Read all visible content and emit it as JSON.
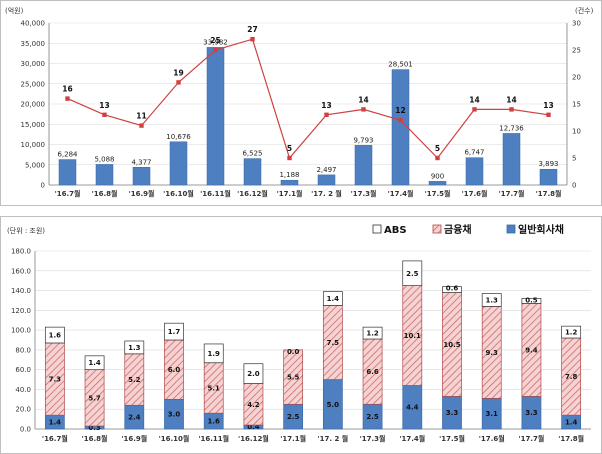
{
  "colors": {
    "blue_bar": "#4e7fc0",
    "blue_bar_dark": "#3a6aa8",
    "red_line": "#d14040",
    "pink_fill": "#f2c8c8",
    "pink_hatch": "#c85555",
    "white_bar": "#ffffff",
    "grid": "#d9d9d9",
    "axis": "#808080"
  },
  "chart_data": [
    {
      "type": "bar+line",
      "title": "",
      "ylabel_left": "(억원)",
      "ylabel_right": "(건수)",
      "categories": [
        "'16.7월",
        "'16.8월",
        "'16.9월",
        "'16.10월",
        "'16.11월",
        "'16.12월",
        "'17.1월",
        "'17. 2 월",
        "'17.3월",
        "'17.4월",
        "'17.5월",
        "'17.6월",
        "'17.7월",
        "'17.8월"
      ],
      "bar_values": [
        6284,
        5088,
        4377,
        10676,
        33982,
        6525,
        1188,
        2497,
        9793,
        28501,
        900,
        6747,
        12736,
        3893
      ],
      "bar_labels": [
        "6,284",
        "5,088",
        "4,377",
        "10,676",
        "33,982",
        "6,525",
        "1,188",
        "2,497",
        "9,793",
        "28,501",
        "900",
        "6,747",
        "12,736",
        "3,893"
      ],
      "line_values": [
        16,
        13,
        11,
        19,
        25,
        27,
        5,
        13,
        14,
        12,
        5,
        14,
        14,
        13
      ],
      "line_labels": [
        "16",
        "13",
        "11",
        "19",
        "25",
        "27",
        "5",
        "13",
        "14",
        "12",
        "5",
        "14",
        "14",
        "13"
      ],
      "ylim_left": [
        0,
        40000
      ],
      "ylim_right": [
        0,
        30
      ],
      "left_ticks": [
        "0",
        "5,000",
        "10,000",
        "15,000",
        "20,000",
        "25,000",
        "30,000",
        "35,000",
        "40,000"
      ],
      "right_ticks": [
        "0",
        "5",
        "10",
        "15",
        "20",
        "25",
        "30"
      ]
    },
    {
      "type": "stacked_bar",
      "unit_label": "(단위 : 조원)",
      "categories": [
        "'16.7월",
        "'16.8월",
        "'16.9월",
        "'16.10월",
        "'16.11월",
        "'16.12월",
        "'17.1월",
        "'17. 2 월",
        "'17.3월",
        "'17.4월",
        "'17.5월",
        "'17.6월",
        "'17.7월",
        "'17.8월"
      ],
      "series": [
        {
          "name": "일반회사채",
          "values": [
            1.4,
            0.3,
            2.4,
            3.0,
            1.6,
            0.4,
            2.5,
            5.0,
            2.5,
            4.4,
            3.3,
            3.1,
            3.3,
            1.4
          ],
          "labels": [
            "1.4",
            "0.3",
            "2.4",
            "3.0",
            "1.6",
            "0.4",
            "2.5",
            "5.0",
            "2.5",
            "4.4",
            "3.3",
            "3.1",
            "3.3",
            "1.4"
          ]
        },
        {
          "name": "금융채",
          "values": [
            7.3,
            5.7,
            5.2,
            6.0,
            5.1,
            4.2,
            5.5,
            7.5,
            6.6,
            10.1,
            10.5,
            9.3,
            9.4,
            7.8
          ],
          "labels": [
            "7.3",
            "5.7",
            "5.2",
            "6.0",
            "5.1",
            "4.2",
            "5.5",
            "7.5",
            "6.6",
            "10.1",
            "10.5",
            "9.3",
            "9.4",
            "7.8"
          ]
        },
        {
          "name": "ABS",
          "values": [
            1.6,
            1.4,
            1.3,
            1.7,
            1.9,
            2.0,
            0.0,
            1.4,
            1.2,
            2.5,
            0.6,
            1.3,
            0.5,
            1.2
          ],
          "labels": [
            "1.6",
            "1.4",
            "1.3",
            "1.7",
            "1.9",
            "2.0",
            "0.0",
            "1.4",
            "1.2",
            "2.5",
            "0.6",
            "1.3",
            "0.5",
            "1.2"
          ]
        }
      ],
      "ylim": [
        0,
        180
      ],
      "yticks": [
        "0.0",
        "20.0",
        "40.0",
        "60.0",
        "80.0",
        "100.0",
        "120.0",
        "140.0",
        "160.0",
        "180.0"
      ],
      "legend": [
        "ABS",
        "금융채",
        "일반회사채"
      ],
      "legend_position": "top-right"
    }
  ]
}
